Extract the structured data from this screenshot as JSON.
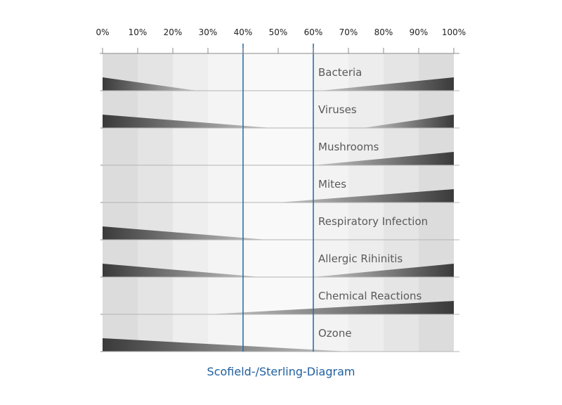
{
  "chart_data": {
    "type": "area",
    "title": "Scofield-/Sterling-Diagram",
    "x_unit": "%",
    "xlim": [
      0,
      100
    ],
    "ticks": [
      0,
      10,
      20,
      30,
      40,
      50,
      60,
      70,
      80,
      90,
      100
    ],
    "tick_labels": [
      "0%",
      "10%",
      "20%",
      "30%",
      "40%",
      "50%",
      "60%",
      "70%",
      "80%",
      "90%",
      "100%"
    ],
    "optimal_range": [
      40,
      60
    ],
    "rows": [
      {
        "label": "Bacteria",
        "low_end": 27,
        "high_start": 62
      },
      {
        "label": "Viruses",
        "low_end": 48,
        "high_start": 74
      },
      {
        "label": "Mushrooms",
        "low_end": null,
        "high_start": 60
      },
      {
        "label": "Mites",
        "low_end": null,
        "high_start": 50
      },
      {
        "label": "Respiratory Infection",
        "low_end": 47,
        "high_start": null
      },
      {
        "label": "Allergic Rihinitis",
        "low_end": 45,
        "high_start": 60
      },
      {
        "label": "Chemical Reactions",
        "low_end": null,
        "high_start": 30
      },
      {
        "label": "Ozone",
        "low_end": 70,
        "high_start": null
      }
    ],
    "band_shades": [
      "#dcdcdc",
      "#e4e4e4",
      "#eeeeee",
      "#f4f4f4",
      "#f9f9f9",
      "#f9f9f9",
      "#f3f3f3",
      "#ededed",
      "#e5e5e5",
      "#dcdcdc"
    ],
    "colors": {
      "optimal_line": "#2e6fa7",
      "wedge_dark": "#3a3a3a",
      "separator": "#b4b4b4",
      "axis": "#8a8a8a"
    }
  }
}
